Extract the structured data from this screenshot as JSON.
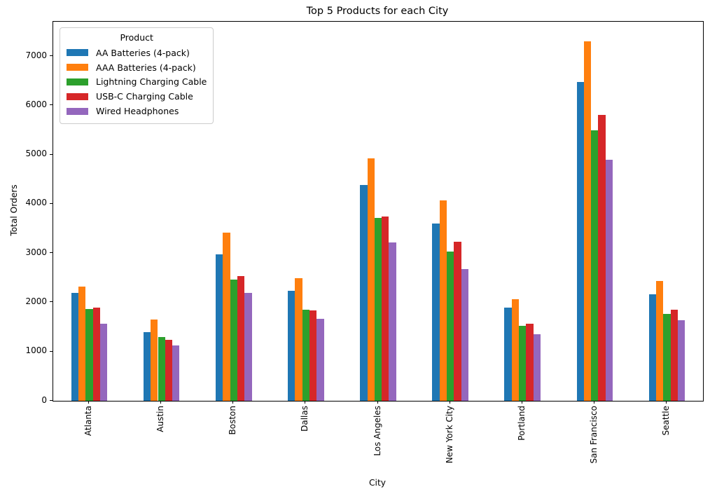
{
  "chart_data": {
    "type": "bar",
    "title": "Top 5 Products for each City",
    "xlabel": "City",
    "ylabel": "Total Orders",
    "categories": [
      "Atlanta",
      "Austin",
      "Boston",
      "Dallas",
      "Los Angeles",
      "New York City",
      "Portland",
      "San Francisco",
      "Seattle"
    ],
    "series": [
      {
        "name": "AA Batteries (4-pack)",
        "color": "#1f77b4",
        "values": [
          2190,
          1400,
          2970,
          2240,
          4390,
          3600,
          1900,
          6470,
          2160
        ]
      },
      {
        "name": "AAA Batteries (4-pack)",
        "color": "#ff7f0e",
        "values": [
          2320,
          1650,
          3410,
          2490,
          4920,
          4070,
          2060,
          7300,
          2430
        ]
      },
      {
        "name": "Lightning Charging Cable",
        "color": "#2ca02c",
        "values": [
          1870,
          1290,
          2460,
          1850,
          3710,
          3030,
          1520,
          5490,
          1770
        ]
      },
      {
        "name": "USB-C Charging Cable",
        "color": "#d62728",
        "values": [
          1890,
          1240,
          2530,
          1830,
          3740,
          3230,
          1570,
          5810,
          1850
        ]
      },
      {
        "name": "Wired Headphones",
        "color": "#9467bd",
        "values": [
          1560,
          1120,
          2190,
          1660,
          3220,
          2670,
          1350,
          4890,
          1630
        ]
      }
    ],
    "yticks": [
      0,
      1000,
      2000,
      3000,
      4000,
      5000,
      6000,
      7000
    ],
    "ylim": [
      0,
      7700
    ],
    "grid": false,
    "legend": {
      "title": "Product",
      "position": "upper left"
    },
    "x_tick_rotation": 90
  }
}
